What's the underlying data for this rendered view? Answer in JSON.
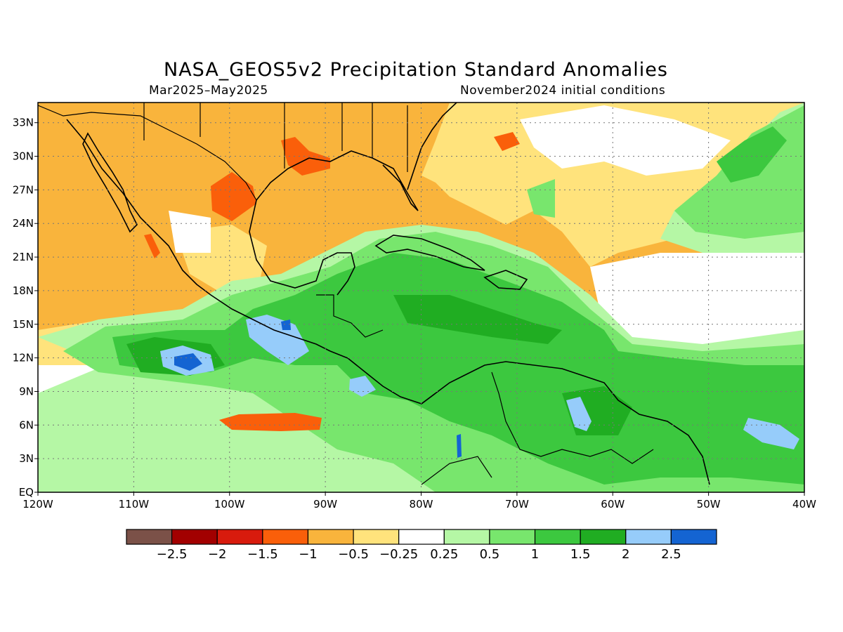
{
  "map": {
    "title": "NASA_GEOS5v2 Precipitation Standard Anomalies",
    "period": "Mar2025–May2025",
    "initial_conditions": "November2024 initial conditions",
    "lon_labels": [
      "120W",
      "110W",
      "100W",
      "90W",
      "80W",
      "70W",
      "60W",
      "50W",
      "40W"
    ],
    "lat_labels": [
      "EQ",
      "3N",
      "6N",
      "9N",
      "12N",
      "15N",
      "18N",
      "21N",
      "24N",
      "27N",
      "30N",
      "33N"
    ]
  },
  "colorbar": {
    "labels": [
      "−2.5",
      "−2",
      "−1.5",
      "−1",
      "−0.5",
      "−0.25",
      "0.25",
      "0.5",
      "1",
      "1.5",
      "2",
      "2.5"
    ],
    "colors": [
      "#7b5148",
      "#a20000",
      "#d81b0d",
      "#fa5f0a",
      "#f9b43c",
      "#ffe37c",
      "#ffffff",
      "#b5f7a5",
      "#78e66d",
      "#3cc83f",
      "#20ad22",
      "#96ccfa",
      "#1464d2"
    ]
  }
}
